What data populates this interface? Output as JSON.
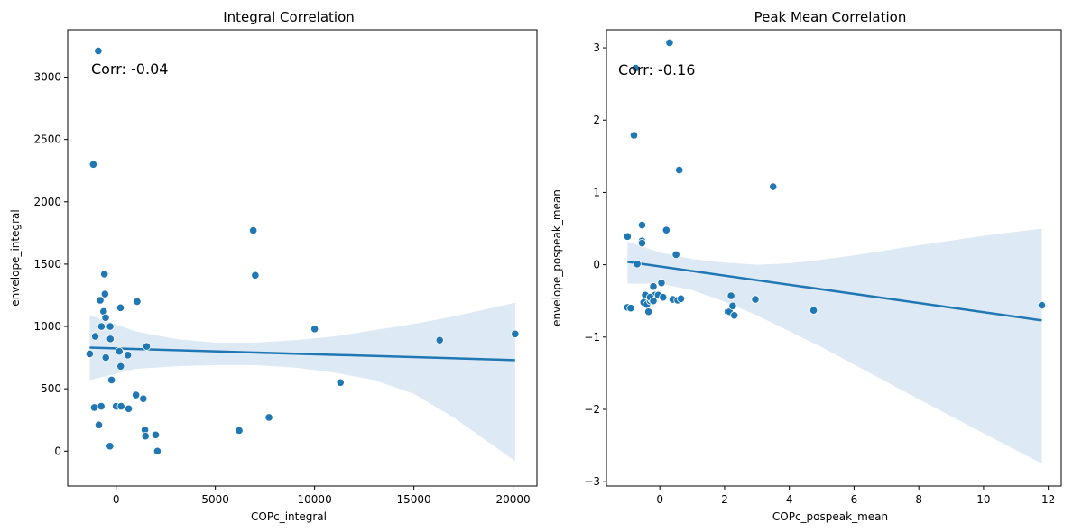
{
  "colors": {
    "marker": "#1f77b4",
    "band": "#c6dbef",
    "line": "#1f77b4"
  },
  "chart_data": [
    {
      "type": "scatter",
      "title": "Integral Correlation",
      "xlabel": "COPc_integral",
      "ylabel": "envelope_integral",
      "annotation": "Corr: -0.04",
      "xlim": [
        -2440,
        21200
      ],
      "ylim": [
        -280,
        3380
      ],
      "xticks": [
        0,
        5000,
        10000,
        15000,
        20000
      ],
      "yticks": [
        0,
        500,
        1000,
        1500,
        2000,
        2500,
        3000
      ],
      "xtick_labels": [
        "0",
        "5000",
        "10000",
        "15000",
        "20000"
      ],
      "ytick_labels": [
        "0",
        "500",
        "1000",
        "1500",
        "2000",
        "2500",
        "3000"
      ],
      "points": [
        [
          -900,
          3210
        ],
        [
          -1150,
          2300
        ],
        [
          -590,
          1420
        ],
        [
          -800,
          1210
        ],
        [
          -560,
          1260
        ],
        [
          -630,
          1120
        ],
        [
          -530,
          1070
        ],
        [
          -740,
          1000
        ],
        [
          -300,
          1000
        ],
        [
          -1050,
          920
        ],
        [
          -290,
          900
        ],
        [
          -1330,
          780
        ],
        [
          -520,
          750
        ],
        [
          -230,
          570
        ],
        [
          -1100,
          350
        ],
        [
          -750,
          360
        ],
        [
          -870,
          210
        ],
        [
          -310,
          40
        ],
        [
          220,
          1150
        ],
        [
          1060,
          1200
        ],
        [
          160,
          800
        ],
        [
          230,
          680
        ],
        [
          590,
          770
        ],
        [
          630,
          340
        ],
        [
          1000,
          450
        ],
        [
          1370,
          420
        ],
        [
          1540,
          840
        ],
        [
          1450,
          170
        ],
        [
          1480,
          120
        ],
        [
          1990,
          130
        ],
        [
          2080,
          0
        ],
        [
          0,
          360
        ],
        [
          250,
          360
        ],
        [
          6200,
          165
        ],
        [
          7700,
          270
        ],
        [
          6910,
          1770
        ],
        [
          7010,
          1410
        ],
        [
          10000,
          980
        ],
        [
          11300,
          550
        ],
        [
          16300,
          890
        ],
        [
          20100,
          940
        ]
      ],
      "regression": {
        "x": [
          -1330,
          20100
        ],
        "y": [
          830,
          730
        ]
      },
      "confidence_band": {
        "x": [
          -1330,
          1000,
          3000,
          5000,
          7000,
          9000,
          11000,
          13000,
          15000,
          17000,
          20100
        ],
        "upper": [
          1090,
          960,
          900,
          870,
          870,
          890,
          920,
          970,
          1020,
          1080,
          1190
        ],
        "lower": [
          570,
          660,
          680,
          690,
          690,
          670,
          630,
          570,
          460,
          270,
          -80
        ]
      }
    },
    {
      "type": "scatter",
      "title": "Peak Mean Correlation",
      "xlabel": "COPc_pospeak_mean",
      "ylabel": "envelope_pospeak_mean",
      "annotation": "Corr: -0.16",
      "xlim": [
        -1.65,
        12.4
      ],
      "ylim": [
        -3.06,
        3.25
      ],
      "xticks": [
        0,
        2,
        4,
        6,
        8,
        10,
        12
      ],
      "yticks": [
        -3,
        -2,
        -1,
        0,
        1,
        2,
        3
      ],
      "xtick_labels": [
        "0",
        "2",
        "4",
        "6",
        "8",
        "10",
        "12"
      ],
      "ytick_labels": [
        "−3",
        "−2",
        "−1",
        "0",
        "1",
        "2",
        "3"
      ],
      "points": [
        [
          0.3,
          3.07
        ],
        [
          -0.75,
          2.72
        ],
        [
          -0.8,
          1.79
        ],
        [
          0.6,
          1.31
        ],
        [
          3.5,
          1.08
        ],
        [
          -0.55,
          0.55
        ],
        [
          0.2,
          0.48
        ],
        [
          -0.55,
          0.33
        ],
        [
          -0.55,
          0.3
        ],
        [
          -1.0,
          0.39
        ],
        [
          0.5,
          0.14
        ],
        [
          -0.7,
          0.01
        ],
        [
          -1.0,
          -0.59
        ],
        [
          -0.9,
          -0.6
        ],
        [
          -0.45,
          -0.42
        ],
        [
          -0.5,
          -0.52
        ],
        [
          -0.4,
          -0.55
        ],
        [
          -0.35,
          -0.65
        ],
        [
          -0.3,
          -0.5
        ],
        [
          -0.25,
          -0.48
        ],
        [
          -0.2,
          -0.3
        ],
        [
          -0.15,
          -0.42
        ],
        [
          -0.05,
          -0.42
        ],
        [
          0.05,
          -0.25
        ],
        [
          0.1,
          -0.45
        ],
        [
          0.4,
          -0.48
        ],
        [
          0.55,
          -0.49
        ],
        [
          0.65,
          -0.47
        ],
        [
          -0.3,
          -0.45
        ],
        [
          -0.2,
          -0.5
        ],
        [
          2.1,
          -0.65
        ],
        [
          2.15,
          -0.65
        ],
        [
          2.2,
          -0.43
        ],
        [
          2.25,
          -0.57
        ],
        [
          2.3,
          -0.7
        ],
        [
          2.95,
          -0.48
        ],
        [
          4.75,
          -0.63
        ],
        [
          11.8,
          -0.56
        ]
      ],
      "regression": {
        "x": [
          -1.0,
          11.8
        ],
        "y": [
          0.04,
          -0.77
        ]
      },
      "confidence_band": {
        "x": [
          -1.0,
          0.0,
          1.0,
          2.0,
          3.0,
          4.0,
          5.0,
          6.0,
          8.0,
          10.0,
          11.8
        ],
        "upper": [
          0.32,
          0.17,
          0.08,
          0.03,
          0.0,
          0.02,
          0.07,
          0.13,
          0.27,
          0.4,
          0.5
        ],
        "lower": [
          -0.26,
          -0.26,
          -0.35,
          -0.51,
          -0.7,
          -0.92,
          -1.14,
          -1.38,
          -1.86,
          -2.33,
          -2.75
        ]
      }
    }
  ]
}
